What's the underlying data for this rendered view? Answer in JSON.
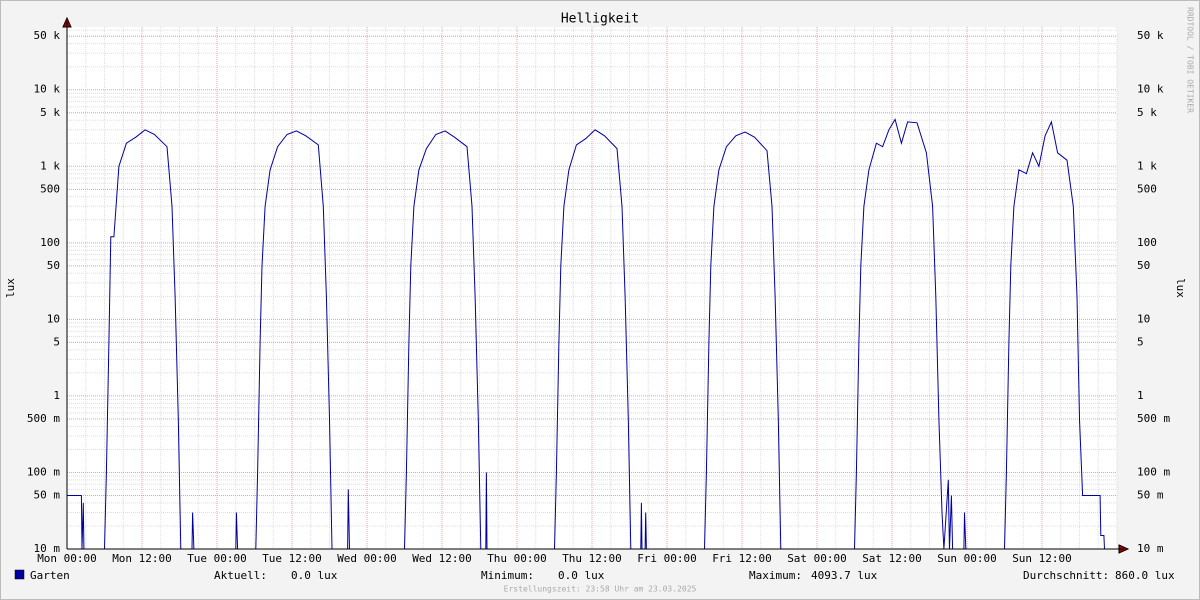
{
  "chart_data": {
    "type": "line",
    "title": "Helligkeit",
    "y_label": "lux",
    "log_scale": true,
    "grid": true,
    "credit": "RRDTOOL / TOBI OETIKER",
    "footer": "Erstellungszeit: 23:58 Uhr am 23.03.2025",
    "xlim": [
      0,
      168
    ],
    "xticks": [
      {
        "value": 0,
        "label": "Mon 00:00"
      },
      {
        "value": 12,
        "label": "Mon 12:00"
      },
      {
        "value": 24,
        "label": "Tue 00:00"
      },
      {
        "value": 36,
        "label": "Tue 12:00"
      },
      {
        "value": 48,
        "label": "Wed 00:00"
      },
      {
        "value": 60,
        "label": "Wed 12:00"
      },
      {
        "value": 72,
        "label": "Thu 00:00"
      },
      {
        "value": 84,
        "label": "Thu 12:00"
      },
      {
        "value": 96,
        "label": "Fri 00:00"
      },
      {
        "value": 108,
        "label": "Fri 12:00"
      },
      {
        "value": 120,
        "label": "Sat 00:00"
      },
      {
        "value": 132,
        "label": "Sat 12:00"
      },
      {
        "value": 144,
        "label": "Sun 00:00"
      },
      {
        "value": 156,
        "label": "Sun 12:00"
      }
    ],
    "ylim": [
      0.01,
      66000
    ],
    "yticks": [
      {
        "value": 0.01,
        "label": "10 m"
      },
      {
        "value": 0.05,
        "label": "50 m"
      },
      {
        "value": 0.1,
        "label": "100 m"
      },
      {
        "value": 0.5,
        "label": "500 m"
      },
      1,
      5,
      10,
      50,
      100,
      500,
      {
        "value": 1000,
        "label": "1 k"
      },
      {
        "value": 5000,
        "label": "5 k"
      },
      {
        "value": 10000,
        "label": "10 k"
      },
      {
        "value": 50000,
        "label": "50 k"
      }
    ],
    "x": [
      0,
      2.3,
      2.4,
      2.6,
      2.7,
      6.0,
      6.3,
      6.7,
      7.0,
      7.5,
      8.3,
      9.5,
      11,
      12.5,
      14,
      16,
      16.8,
      17.3,
      17.8,
      18.2,
      20.0,
      20.1,
      20.3,
      27.0,
      27.1,
      27.3,
      30.2,
      30.5,
      30.9,
      31.2,
      31.7,
      32.5,
      33.7,
      35.2,
      36.7,
      38.2,
      40.2,
      41.0,
      41.5,
      42.0,
      42.4,
      44.9,
      45.0,
      45.2,
      54.0,
      54.3,
      54.7,
      55.0,
      55.5,
      56.3,
      57.5,
      59.0,
      60.5,
      62.0,
      64.0,
      64.8,
      65.3,
      65.8,
      66.2,
      67.0,
      67.1,
      67.2,
      78.0,
      78.3,
      78.7,
      79.0,
      79.5,
      80.3,
      81.5,
      83.0,
      84.5,
      86.0,
      88.0,
      88.8,
      89.3,
      89.8,
      90.2,
      91.8,
      91.9,
      92.0,
      92.5,
      92.6,
      92.7,
      102.0,
      102.3,
      102.7,
      103.0,
      103.5,
      104.3,
      105.5,
      107.0,
      108.5,
      110.0,
      112.0,
      112.8,
      113.3,
      113.8,
      114.2,
      126.0,
      126.3,
      126.7,
      127.0,
      127.5,
      128.3,
      129.5,
      130.5,
      131.5,
      132.5,
      133.5,
      134.5,
      136.0,
      137.5,
      138.5,
      139.0,
      139.5,
      140.0,
      140.3,
      141.0,
      141.2,
      141.5,
      141.7,
      143.5,
      143.6,
      143.8,
      150.0,
      150.3,
      150.7,
      151.0,
      151.5,
      152.3,
      153.5,
      154.5,
      155.5,
      156.5,
      157.5,
      158.5,
      160.0,
      161.0,
      161.6,
      162.0,
      162.5,
      165.3,
      165.4,
      165.9,
      166.0
    ],
    "series": [
      {
        "name": "Garten",
        "color": "#0000a0",
        "values": [
          0.05,
          0.05,
          0,
          0.04,
          0,
          0,
          0.1,
          5,
          120,
          120,
          1000,
          2000,
          2400,
          3000,
          2600,
          1800,
          300,
          20,
          0.5,
          0,
          0,
          0.03,
          0,
          0,
          0.03,
          0,
          0,
          0.1,
          5,
          50,
          300,
          900,
          1800,
          2600,
          2900,
          2500,
          1900,
          300,
          20,
          0.5,
          0,
          0,
          0.06,
          0,
          0,
          0.1,
          5,
          50,
          300,
          900,
          1700,
          2600,
          2900,
          2400,
          1800,
          300,
          20,
          0.5,
          0,
          0,
          0.1,
          0,
          0,
          0.1,
          5,
          50,
          300,
          900,
          1900,
          2300,
          3000,
          2500,
          1700,
          300,
          20,
          0.5,
          0,
          0,
          0.04,
          0,
          0,
          0.03,
          0,
          0,
          0.1,
          5,
          50,
          300,
          900,
          1800,
          2500,
          2800,
          2400,
          1600,
          300,
          20,
          0.5,
          0,
          0,
          0.1,
          5,
          50,
          300,
          900,
          2000,
          1800,
          3000,
          4094,
          2000,
          3800,
          3700,
          1500,
          300,
          20,
          0.5,
          0.03,
          0,
          0.08,
          0,
          0.05,
          0,
          0,
          0.03,
          0,
          0,
          0.1,
          5,
          50,
          300,
          900,
          800,
          1500,
          1000,
          2500,
          3800,
          1500,
          1200,
          300,
          20,
          0.5,
          0.05,
          0.05,
          0.015,
          0.015,
          0
        ]
      }
    ],
    "stats": [
      {
        "label": "Aktuell:",
        "value": "0.0 lux"
      },
      {
        "label": "Minimum:",
        "value": "0.0 lux"
      },
      {
        "label": "Maximum:",
        "value": "4093.7 lux"
      },
      {
        "label": "Durchschnitt:",
        "value": "860.0 lux"
      }
    ]
  }
}
